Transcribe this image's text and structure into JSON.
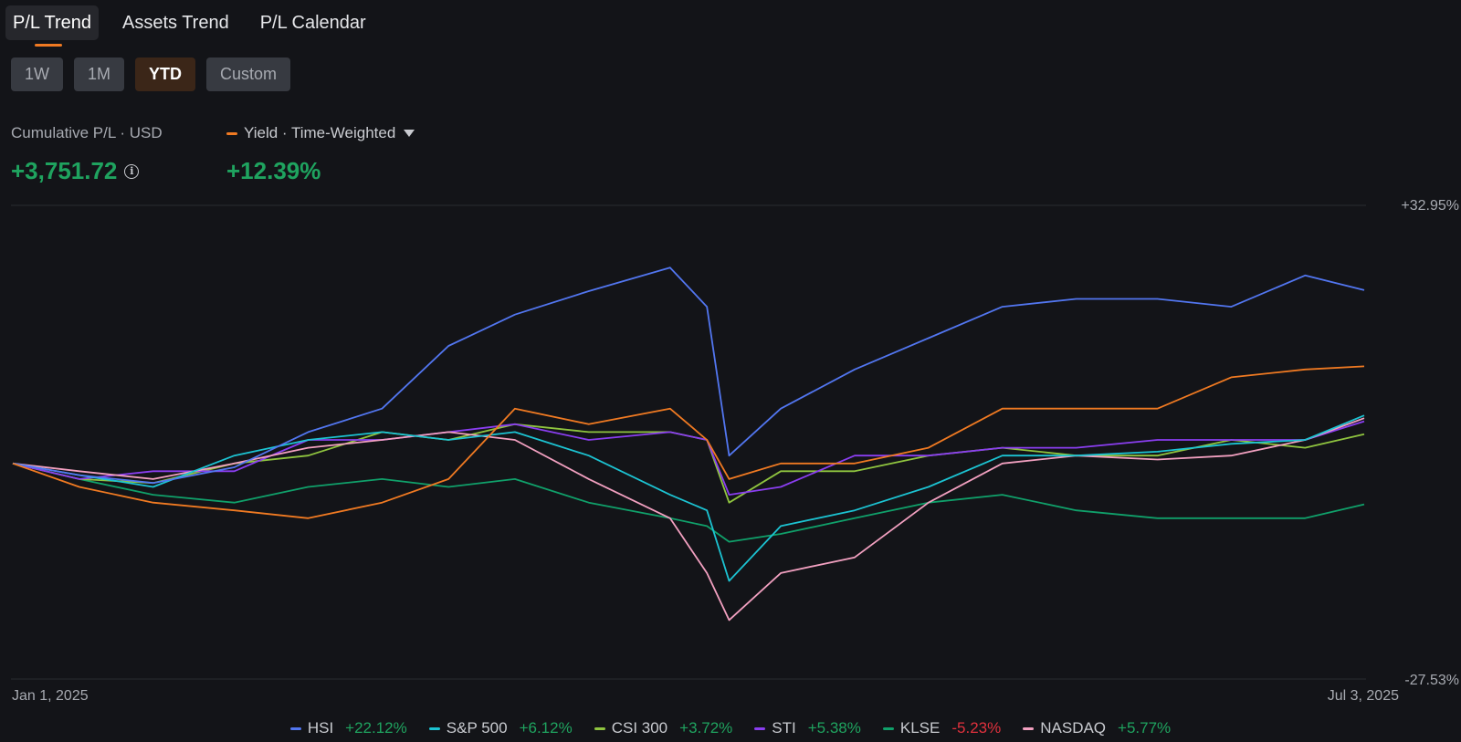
{
  "tabs": [
    {
      "label": "P/L Trend",
      "active": true
    },
    {
      "label": "Assets Trend",
      "active": false
    },
    {
      "label": "P/L Calendar",
      "active": false
    }
  ],
  "ranges": [
    {
      "label": "1W",
      "active": false
    },
    {
      "label": "1M",
      "active": false
    },
    {
      "label": "YTD",
      "active": true
    },
    {
      "label": "Custom",
      "active": false
    }
  ],
  "summary": {
    "cumulative_label": "Cumulative P/L · USD",
    "cumulative_value": "+3,751.72",
    "yield_label": "Yield · Time-Weighted",
    "yield_value": "+12.39%"
  },
  "colors": {
    "accent": "#f07a22",
    "positive": "#1fa35f",
    "negative": "#e0313d",
    "background": "#131418"
  },
  "legend": [
    {
      "name": "HSI",
      "value": "+22.12%",
      "color": "#5276f0"
    },
    {
      "name": "S&P 500",
      "value": "+6.12%",
      "color": "#1cc3d2"
    },
    {
      "name": "CSI 300",
      "value": "+3.72%",
      "color": "#8fc43f"
    },
    {
      "name": "STI",
      "value": "+5.38%",
      "color": "#8a3ef0"
    },
    {
      "name": "KLSE",
      "value": "-5.23%",
      "color": "#10a06a"
    },
    {
      "name": "NASDAQ",
      "value": "+5.77%",
      "color": "#f2a0c0"
    }
  ],
  "chart_data": {
    "type": "line",
    "title": "P/L Trend",
    "x_range": [
      "2025-01-01",
      "2025-07-03"
    ],
    "x_tick_labels": [
      "Jan 1, 2025",
      "Jul 3, 2025"
    ],
    "y_unit": "%",
    "ylim": [
      -27.53,
      32.95
    ],
    "y_tick_labels": [
      "+32.95%",
      "-27.53%"
    ],
    "grid": true,
    "x": [
      "2025-01-01",
      "2025-01-10",
      "2025-01-20",
      "2025-01-31",
      "2025-02-10",
      "2025-02-20",
      "2025-03-01",
      "2025-03-10",
      "2025-03-20",
      "2025-03-31",
      "2025-04-05",
      "2025-04-08",
      "2025-04-15",
      "2025-04-25",
      "2025-05-05",
      "2025-05-15",
      "2025-05-25",
      "2025-06-05",
      "2025-06-15",
      "2025-06-25",
      "2025-07-03"
    ],
    "series": [
      {
        "name": "HSI",
        "values": [
          0,
          -1.5,
          -2.5,
          -0.5,
          4,
          7,
          15,
          19,
          22,
          25,
          20,
          1,
          7,
          12,
          16,
          20,
          21,
          21,
          20,
          24,
          22.12
        ]
      },
      {
        "name": "Yield",
        "values": [
          0,
          -3,
          -5,
          -6,
          -7,
          -5,
          -2,
          7,
          5,
          7,
          3,
          -2,
          0,
          0,
          2,
          7,
          7,
          7,
          11,
          12,
          12.39
        ]
      },
      {
        "name": "S&P 500",
        "values": [
          0,
          -1.5,
          -3,
          1,
          3,
          4,
          3,
          4,
          1,
          -4,
          -6,
          -15,
          -8,
          -6,
          -3,
          1,
          1,
          1.5,
          2.5,
          3,
          6.12
        ]
      },
      {
        "name": "CSI 300",
        "values": [
          0,
          -2,
          -2.5,
          0,
          1,
          4,
          3,
          5,
          4,
          4,
          3,
          -5,
          -1,
          -1,
          1,
          2,
          1,
          1,
          3,
          2,
          3.72
        ]
      },
      {
        "name": "STI",
        "values": [
          0,
          -2,
          -1,
          -1,
          3,
          3,
          4,
          5,
          3,
          4,
          3,
          -4,
          -3,
          1,
          1,
          2,
          2,
          3,
          3,
          3,
          5.38
        ]
      },
      {
        "name": "KLSE",
        "values": [
          0,
          -2,
          -4,
          -5,
          -3,
          -2,
          -3,
          -2,
          -5,
          -7,
          -8,
          -10,
          -9,
          -7,
          -5,
          -4,
          -6,
          -7,
          -7,
          -7,
          -5.23
        ]
      },
      {
        "name": "NASDAQ",
        "values": [
          0,
          -1,
          -2,
          0,
          2,
          3,
          4,
          3,
          -2,
          -7,
          -14,
          -20,
          -14,
          -12,
          -5,
          0,
          1,
          0.5,
          1,
          3,
          5.77
        ]
      }
    ]
  }
}
